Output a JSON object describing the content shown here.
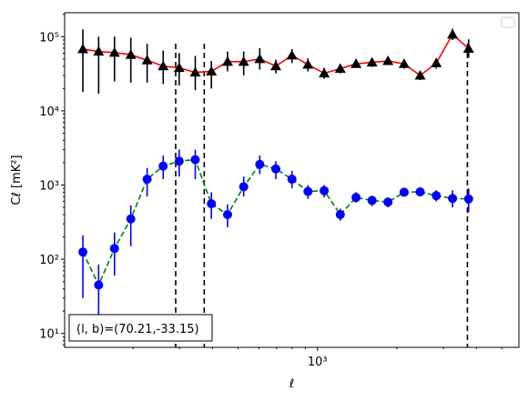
{
  "chart_data": {
    "type": "scatter",
    "xscale": "log",
    "yscale": "log",
    "xlim": [
      110,
      5800
    ],
    "ylim": [
      6.5,
      210000
    ],
    "xlabel": "ℓ",
    "ylabel": "Cℓ  [mK²]",
    "x_ticks": [
      {
        "value": 1000,
        "label": "10³"
      }
    ],
    "y_ticks": [
      {
        "value": 10,
        "label": "10¹"
      },
      {
        "value": 100,
        "label": "10²"
      },
      {
        "value": 1000,
        "label": "10³"
      },
      {
        "value": 10000,
        "label": "10⁴"
      },
      {
        "value": 100000,
        "label": "10⁵"
      }
    ],
    "grid": false,
    "legend": {
      "placement": "top-right",
      "entries": []
    },
    "annotation": "(l, b)=(70.21,-33.15)",
    "vlines": [
      {
        "x": 290,
        "style": "dashed",
        "color": "#000000"
      },
      {
        "x": 372,
        "style": "dashed",
        "color": "#000000"
      },
      {
        "x": 3700,
        "style": "dashed",
        "color": "#000000"
      }
    ],
    "series": [
      {
        "marker": "triangle",
        "marker_color": "#000000",
        "line_color": "#ff0000",
        "line_style": "solid",
        "error_color": "#000000",
        "points": [
          {
            "x": 129,
            "y": 68000,
            "lo": 18000,
            "hi": 125000
          },
          {
            "x": 148,
            "y": 63000,
            "lo": 17000,
            "hi": 100000
          },
          {
            "x": 170,
            "y": 61000,
            "lo": 25000,
            "hi": 100000
          },
          {
            "x": 196,
            "y": 57000,
            "lo": 24000,
            "hi": 97000
          },
          {
            "x": 226,
            "y": 48000,
            "lo": 24000,
            "hi": 80000
          },
          {
            "x": 260,
            "y": 40000,
            "lo": 23000,
            "hi": 65000
          },
          {
            "x": 299,
            "y": 38000,
            "lo": 22000,
            "hi": 60000
          },
          {
            "x": 344,
            "y": 33000,
            "lo": 19000,
            "hi": 55000
          },
          {
            "x": 396,
            "y": 34000,
            "lo": 20000,
            "hi": 47000
          },
          {
            "x": 456,
            "y": 46000,
            "lo": 34000,
            "hi": 63000
          },
          {
            "x": 525,
            "y": 46000,
            "lo": 30000,
            "hi": 63000
          },
          {
            "x": 604,
            "y": 50000,
            "lo": 36000,
            "hi": 70000
          },
          {
            "x": 695,
            "y": 40000,
            "lo": 32000,
            "hi": 49000
          },
          {
            "x": 800,
            "y": 56000,
            "lo": 44000,
            "hi": 68000
          },
          {
            "x": 920,
            "y": 42000,
            "lo": 34000,
            "hi": 51000
          },
          {
            "x": 1060,
            "y": 32000,
            "lo": 27000,
            "hi": 38000
          },
          {
            "x": 1220,
            "y": 37000,
            "lo": 32000,
            "hi": 42000
          },
          {
            "x": 1400,
            "y": 43000,
            "lo": 38000,
            "hi": 50000
          },
          {
            "x": 1610,
            "y": 45000,
            "lo": 39000,
            "hi": 51000
          },
          {
            "x": 1850,
            "y": 47000,
            "lo": 42000,
            "hi": 53000
          },
          {
            "x": 2130,
            "y": 43000,
            "lo": 37000,
            "hi": 49000
          },
          {
            "x": 2450,
            "y": 30000,
            "lo": 26000,
            "hi": 34000
          },
          {
            "x": 2820,
            "y": 44000,
            "lo": 37000,
            "hi": 51000
          },
          {
            "x": 3250,
            "y": 107000,
            "lo": 90000,
            "hi": 128000
          },
          {
            "x": 3740,
            "y": 69000,
            "lo": 52000,
            "hi": 92000
          }
        ]
      },
      {
        "marker": "circle",
        "marker_color": "#0000ff",
        "line_color": "#008000",
        "line_style": "dashed",
        "error_color": "#0000ff",
        "points": [
          {
            "x": 129,
            "y": 125,
            "lo": 30,
            "hi": 210
          },
          {
            "x": 148,
            "y": 45,
            "lo": 15,
            "hi": 85
          },
          {
            "x": 170,
            "y": 140,
            "lo": 60,
            "hi": 230
          },
          {
            "x": 196,
            "y": 350,
            "lo": 150,
            "hi": 530
          },
          {
            "x": 226,
            "y": 1200,
            "lo": 700,
            "hi": 1700
          },
          {
            "x": 260,
            "y": 1800,
            "lo": 1200,
            "hi": 2500
          },
          {
            "x": 299,
            "y": 2100,
            "lo": 1300,
            "hi": 3000
          },
          {
            "x": 344,
            "y": 2200,
            "lo": 1200,
            "hi": 3000
          },
          {
            "x": 396,
            "y": 560,
            "lo": 350,
            "hi": 800
          },
          {
            "x": 456,
            "y": 400,
            "lo": 270,
            "hi": 550
          },
          {
            "x": 525,
            "y": 950,
            "lo": 700,
            "hi": 1300
          },
          {
            "x": 604,
            "y": 1900,
            "lo": 1400,
            "hi": 2500
          },
          {
            "x": 695,
            "y": 1650,
            "lo": 1200,
            "hi": 2100
          },
          {
            "x": 800,
            "y": 1200,
            "lo": 900,
            "hi": 1550
          },
          {
            "x": 920,
            "y": 820,
            "lo": 650,
            "hi": 1000
          },
          {
            "x": 1060,
            "y": 840,
            "lo": 680,
            "hi": 1000
          },
          {
            "x": 1220,
            "y": 400,
            "lo": 330,
            "hi": 480
          },
          {
            "x": 1400,
            "y": 680,
            "lo": 580,
            "hi": 800
          },
          {
            "x": 1610,
            "y": 620,
            "lo": 520,
            "hi": 720
          },
          {
            "x": 1850,
            "y": 590,
            "lo": 500,
            "hi": 680
          },
          {
            "x": 2130,
            "y": 800,
            "lo": 700,
            "hi": 910
          },
          {
            "x": 2450,
            "y": 810,
            "lo": 720,
            "hi": 910
          },
          {
            "x": 2820,
            "y": 720,
            "lo": 600,
            "hi": 850
          },
          {
            "x": 3250,
            "y": 660,
            "lo": 500,
            "hi": 850
          },
          {
            "x": 3740,
            "y": 650,
            "lo": 430,
            "hi": 900
          }
        ]
      }
    ]
  }
}
